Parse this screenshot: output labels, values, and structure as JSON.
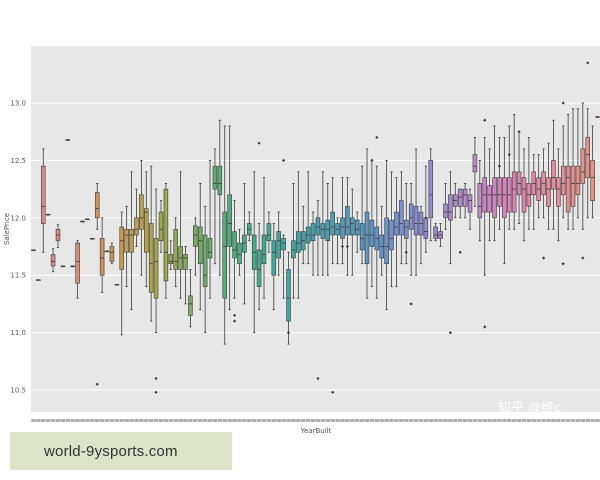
{
  "chart_data": {
    "type": "box",
    "xlabel": "YearBuilt",
    "ylabel": "SalePrice",
    "ylim": [
      10.4,
      13.45
    ],
    "yticks": [
      "10.5",
      "11.0",
      "11.5",
      "12.0",
      "12.5",
      "13.0"
    ],
    "grid": true,
    "x_tick_labels_legible": false,
    "boxes": [
      [
        11.72,
        11.72,
        11.72,
        11.72,
        11.72,
        "#da8a8a"
      ],
      [
        11.46,
        11.46,
        11.46,
        11.46,
        11.46,
        "#da8a8a"
      ],
      [
        11.7,
        11.95,
        12.1,
        12.45,
        12.6,
        "#da8a8a"
      ],
      [
        12.03,
        12.03,
        12.03,
        12.03,
        12.03,
        "#da8a8a"
      ],
      [
        11.53,
        11.58,
        11.62,
        11.68,
        11.73,
        "#d88c80"
      ],
      [
        11.74,
        11.8,
        11.85,
        11.9,
        11.94,
        "#d88c80"
      ],
      [
        11.58,
        11.58,
        11.58,
        11.58,
        11.58,
        "#d88c80"
      ],
      [
        12.68,
        12.68,
        12.68,
        12.68,
        12.68,
        "#d88c80"
      ],
      [
        11.58,
        11.58,
        11.58,
        11.58,
        11.58,
        "#d88c80"
      ],
      [
        11.3,
        11.43,
        11.62,
        11.78,
        11.8,
        "#d68e6c"
      ],
      [
        11.97,
        11.97,
        11.97,
        11.97,
        11.97,
        "#d68e6c"
      ],
      [
        11.99,
        11.99,
        11.99,
        11.99,
        11.99,
        "#d68e6c"
      ],
      [
        11.82,
        11.82,
        11.82,
        11.82,
        11.82,
        "#d68e6c"
      ],
      [
        11.9,
        12.0,
        12.08,
        12.22,
        12.3,
        "#d09158"
      ],
      [
        11.35,
        11.5,
        11.65,
        11.82,
        12.0,
        "#d09158"
      ],
      [
        11.71,
        11.71,
        11.71,
        11.71,
        11.71,
        "#cc9456"
      ],
      [
        11.6,
        11.62,
        11.7,
        11.75,
        11.78,
        "#cc9456"
      ],
      [
        11.42,
        11.42,
        11.42,
        11.42,
        11.42,
        "#c99856"
      ],
      [
        10.98,
        11.55,
        11.8,
        11.92,
        12.05,
        "#c69a56"
      ],
      [
        11.4,
        11.7,
        11.85,
        11.9,
        12.1,
        "#c29b52"
      ],
      [
        11.2,
        11.7,
        11.85,
        11.9,
        12.4,
        "#be9d50"
      ],
      [
        11.75,
        11.85,
        11.9,
        12.0,
        12.25,
        "#ba9f4d"
      ],
      [
        11.5,
        11.9,
        12.0,
        12.2,
        12.5,
        "#b6a14a"
      ],
      [
        11.4,
        11.7,
        12.05,
        12.08,
        12.4,
        "#b3a448"
      ],
      [
        11.1,
        11.35,
        11.6,
        11.95,
        12.45,
        "#aca446"
      ],
      [
        11.0,
        11.3,
        11.62,
        11.82,
        12.25,
        "#a8a64a"
      ],
      [
        11.7,
        11.8,
        11.9,
        12.05,
        12.15,
        "#a2a749"
      ],
      [
        11.3,
        11.45,
        11.7,
        12.25,
        12.3,
        "#9ca84b"
      ],
      [
        11.55,
        11.6,
        11.62,
        11.68,
        11.8,
        "#96a94e"
      ],
      [
        11.4,
        11.55,
        11.62,
        11.9,
        12.0,
        "#8faa52"
      ],
      [
        11.3,
        11.55,
        11.65,
        11.75,
        12.4,
        "#89aa54"
      ],
      [
        11.25,
        11.55,
        11.65,
        11.68,
        11.75,
        "#82ab58"
      ],
      [
        11.05,
        11.15,
        11.25,
        11.32,
        11.55,
        "#7cac5c"
      ],
      [
        11.5,
        11.75,
        11.85,
        11.93,
        12.0,
        "#76ad60"
      ],
      [
        11.2,
        11.6,
        11.8,
        11.92,
        12.3,
        "#70ad64"
      ],
      [
        11.0,
        11.4,
        11.5,
        11.85,
        12.1,
        "#6aae68"
      ],
      [
        11.3,
        11.65,
        11.7,
        11.82,
        12.5,
        "#65ae6c"
      ],
      [
        11.6,
        12.25,
        12.3,
        12.45,
        12.6,
        "#5fae70"
      ],
      [
        11.5,
        12.2,
        12.3,
        12.45,
        12.85,
        "#5aae74"
      ],
      [
        10.9,
        11.3,
        11.75,
        12.05,
        12.8,
        "#55ae78"
      ],
      [
        11.2,
        11.75,
        11.95,
        12.2,
        12.8,
        "#50ae7c"
      ],
      [
        11.3,
        11.65,
        11.72,
        11.88,
        12.15,
        "#4cae80"
      ],
      [
        11.5,
        11.6,
        11.68,
        11.78,
        11.9,
        "#48ae84"
      ],
      [
        11.25,
        11.7,
        11.78,
        11.85,
        12.3,
        "#45ae88"
      ],
      [
        11.8,
        11.85,
        11.9,
        11.95,
        12.05,
        "#43ad8c"
      ],
      [
        11.0,
        11.55,
        11.7,
        11.85,
        12.4,
        "#41ad8f"
      ],
      [
        11.2,
        11.4,
        11.55,
        11.72,
        11.95,
        "#40ac92"
      ],
      [
        11.3,
        11.6,
        11.68,
        11.85,
        12.35,
        "#3fab95"
      ],
      [
        11.7,
        11.8,
        11.85,
        11.95,
        12.05,
        "#3fab98"
      ],
      [
        11.2,
        11.5,
        11.7,
        11.8,
        11.95,
        "#3faa9a"
      ],
      [
        11.5,
        11.65,
        11.8,
        11.88,
        12.05,
        "#3fa99d"
      ],
      [
        11.3,
        11.72,
        11.78,
        11.82,
        11.85,
        "#3fa8a0"
      ],
      [
        10.9,
        11.1,
        11.3,
        11.55,
        11.7,
        "#40a7a3"
      ],
      [
        11.3,
        11.65,
        11.72,
        11.8,
        12.3,
        "#40a6a5"
      ],
      [
        11.3,
        11.7,
        11.78,
        11.88,
        12.4,
        "#41a5a8"
      ],
      [
        11.6,
        11.72,
        11.8,
        11.88,
        12.1,
        "#41a4aa"
      ],
      [
        11.6,
        11.78,
        11.85,
        11.92,
        12.4,
        "#42a3ac"
      ],
      [
        11.5,
        11.8,
        11.85,
        11.95,
        12.05,
        "#43a2af"
      ],
      [
        11.5,
        11.85,
        11.92,
        12.0,
        12.15,
        "#44a1b1"
      ],
      [
        11.5,
        11.82,
        11.9,
        11.95,
        12.4,
        "#45a0b3"
      ],
      [
        11.5,
        11.8,
        11.9,
        11.98,
        12.3,
        "#469fb5"
      ],
      [
        11.6,
        11.85,
        11.92,
        12.05,
        12.35,
        "#489eb8"
      ],
      [
        11.6,
        11.85,
        11.9,
        11.95,
        12.0,
        "#4a9dba"
      ],
      [
        11.6,
        11.82,
        11.92,
        12.0,
        12.35,
        "#4c9cbc"
      ],
      [
        11.5,
        11.85,
        11.92,
        12.1,
        12.35,
        "#4e9bbe"
      ],
      [
        11.5,
        11.85,
        11.95,
        12.0,
        12.25,
        "#509ac0"
      ],
      [
        11.7,
        11.85,
        11.9,
        11.98,
        12.05,
        "#5399c2"
      ],
      [
        11.6,
        11.72,
        11.82,
        11.95,
        12.45,
        "#5698c4"
      ],
      [
        11.3,
        11.6,
        11.85,
        12.05,
        12.6,
        "#5997c6"
      ],
      [
        11.4,
        11.75,
        11.85,
        11.98,
        12.5,
        "#5d96c8"
      ],
      [
        11.3,
        11.72,
        11.82,
        11.92,
        12.45,
        "#6195ca"
      ],
      [
        11.5,
        11.65,
        11.75,
        11.85,
        12.1,
        "#6594cc"
      ],
      [
        11.2,
        11.6,
        11.75,
        12.0,
        12.5,
        "#6993ce"
      ],
      [
        11.4,
        11.72,
        11.82,
        11.98,
        12.4,
        "#6d92cf"
      ],
      [
        11.4,
        11.85,
        11.92,
        12.05,
        12.35,
        "#7191d1"
      ],
      [
        11.6,
        11.85,
        11.95,
        12.15,
        12.4,
        "#7690d2"
      ],
      [
        11.6,
        11.82,
        11.92,
        11.98,
        12.3,
        "#7b8fd3"
      ],
      [
        11.5,
        11.9,
        12.0,
        12.12,
        12.3,
        "#808ed4"
      ],
      [
        11.5,
        11.85,
        11.95,
        12.1,
        12.6,
        "#858dd5"
      ],
      [
        11.6,
        11.85,
        11.95,
        12.05,
        12.1,
        "#8a8cd5"
      ],
      [
        11.7,
        11.82,
        11.88,
        12.0,
        12.45,
        "#8f8bd5"
      ],
      [
        11.8,
        12.0,
        12.2,
        12.5,
        12.6,
        "#948ad5"
      ],
      [
        11.8,
        11.82,
        11.85,
        11.92,
        11.95,
        "#998ad4"
      ],
      [
        11.75,
        11.82,
        11.85,
        11.88,
        11.95,
        "#9e8ad3"
      ],
      [
        11.9,
        12.0,
        12.05,
        12.12,
        12.3,
        "#a38ad2"
      ],
      [
        11.6,
        11.98,
        12.05,
        12.2,
        12.4,
        "#a88ad1"
      ],
      [
        12.0,
        12.1,
        12.15,
        12.2,
        12.3,
        "#ad8ad0"
      ],
      [
        12.0,
        12.1,
        12.18,
        12.25,
        12.25,
        "#b289ce"
      ],
      [
        12.0,
        12.1,
        12.2,
        12.25,
        12.3,
        "#b789cd"
      ],
      [
        11.9,
        12.05,
        12.15,
        12.2,
        12.25,
        "#bb88cb"
      ],
      [
        12.1,
        12.4,
        12.45,
        12.55,
        12.7,
        "#c087c9"
      ],
      [
        11.8,
        12.0,
        12.1,
        12.3,
        12.5,
        "#c486c7"
      ],
      [
        11.5,
        12.05,
        12.2,
        12.35,
        12.7,
        "#c885c5"
      ],
      [
        11.8,
        12.05,
        12.2,
        12.28,
        12.6,
        "#cc84c2"
      ],
      [
        11.8,
        12.0,
        12.2,
        12.35,
        12.8,
        "#d083c0"
      ],
      [
        11.9,
        12.1,
        12.2,
        12.35,
        12.7,
        "#d482bd"
      ],
      [
        11.6,
        12.0,
        12.2,
        12.35,
        12.7,
        "#d782ba"
      ],
      [
        11.9,
        12.05,
        12.2,
        12.35,
        12.8,
        "#da82b7"
      ],
      [
        11.9,
        12.05,
        12.25,
        12.4,
        12.9,
        "#dc83b4"
      ],
      [
        11.95,
        12.2,
        12.3,
        12.4,
        12.75,
        "#de84b1"
      ],
      [
        11.8,
        12.05,
        12.25,
        12.35,
        12.6,
        "#df85ad"
      ],
      [
        11.9,
        12.1,
        12.2,
        12.3,
        12.7,
        "#e086aa"
      ],
      [
        11.9,
        12.2,
        12.3,
        12.4,
        12.55,
        "#e187a6"
      ],
      [
        12.0,
        12.15,
        12.25,
        12.35,
        12.55,
        "#e288a3"
      ],
      [
        12.0,
        12.2,
        12.3,
        12.4,
        12.6,
        "#e389a0"
      ],
      [
        11.9,
        12.1,
        12.25,
        12.35,
        12.65,
        "#e48a9d"
      ],
      [
        11.9,
        12.25,
        12.35,
        12.5,
        12.85,
        "#e58b9a"
      ],
      [
        11.8,
        12.1,
        12.25,
        12.35,
        12.6,
        "#e58c97"
      ],
      [
        12.0,
        12.2,
        12.3,
        12.45,
        12.8,
        "#e58d94"
      ],
      [
        11.9,
        12.05,
        12.35,
        12.45,
        12.9,
        "#e58e91"
      ],
      [
        11.9,
        12.1,
        12.3,
        12.45,
        12.95,
        "#e58f8e"
      ],
      [
        12.0,
        12.2,
        12.3,
        12.45,
        12.95,
        "#e5908b"
      ],
      [
        11.9,
        12.3,
        12.4,
        12.6,
        13.0,
        "#e59188"
      ],
      [
        12.0,
        12.35,
        12.55,
        12.7,
        12.95,
        "#e59286"
      ],
      [
        12.0,
        12.15,
        12.35,
        12.5,
        12.8,
        "#e59384"
      ],
      [
        12.88,
        12.88,
        12.88,
        12.88,
        12.88,
        "#e59384"
      ]
    ],
    "outliers": [
      [
        13,
        10.55
      ],
      [
        25,
        10.6
      ],
      [
        25,
        10.48
      ],
      [
        41,
        11.15
      ],
      [
        41,
        11.1
      ],
      [
        46,
        12.65
      ],
      [
        51,
        12.5
      ],
      [
        52,
        11.0
      ],
      [
        58,
        10.6
      ],
      [
        61,
        10.48
      ],
      [
        63,
        11.75
      ],
      [
        64,
        11.75
      ],
      [
        69,
        12.5
      ],
      [
        70,
        12.7
      ],
      [
        76,
        11.7
      ],
      [
        77,
        11.25
      ],
      [
        80,
        12.0
      ],
      [
        85,
        11.0
      ],
      [
        87,
        11.7
      ],
      [
        92,
        12.85
      ],
      [
        92,
        11.05
      ],
      [
        95,
        12.45
      ],
      [
        97,
        12.55
      ],
      [
        99,
        12.75
      ],
      [
        108,
        13.0
      ],
      [
        113,
        13.35
      ],
      [
        116,
        12.9
      ],
      [
        117,
        12.9
      ],
      [
        118,
        13.05
      ],
      [
        119,
        13.25
      ],
      [
        120,
        13.3
      ],
      [
        120,
        11.35
      ],
      [
        112,
        11.65
      ],
      [
        104,
        11.65
      ],
      [
        108,
        11.6
      ]
    ]
  },
  "watermark": {
    "text": "知乎 @维c"
  },
  "banner": {
    "text": "world-9ysports.com"
  }
}
